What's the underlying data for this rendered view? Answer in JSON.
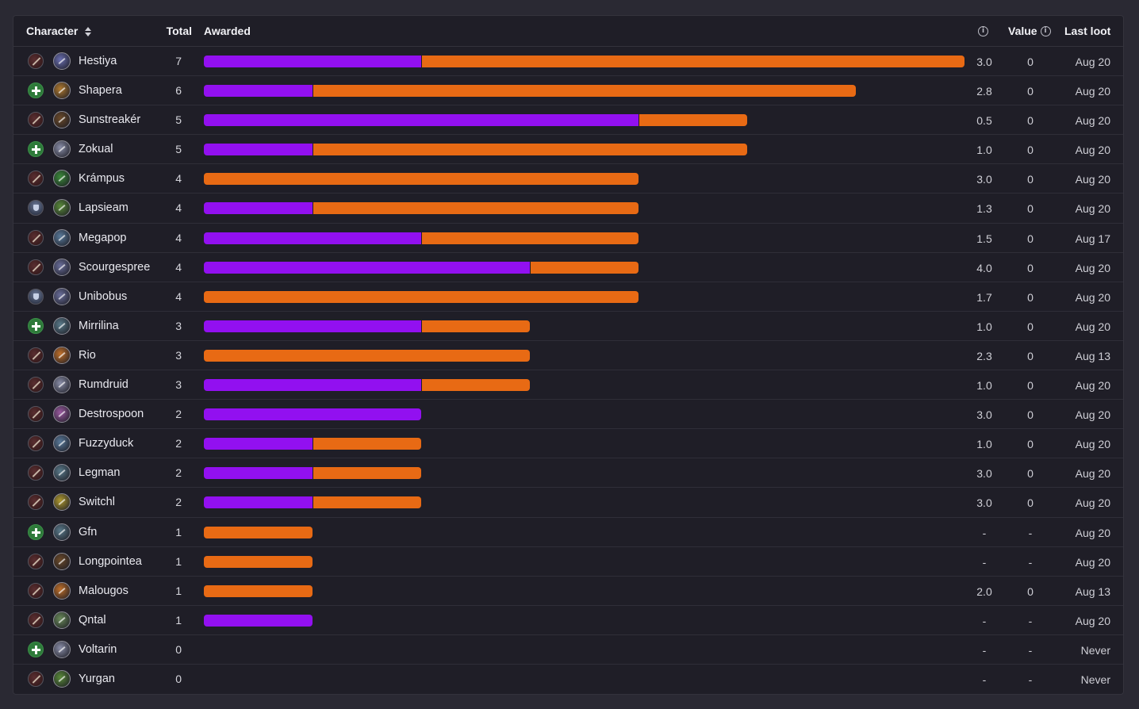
{
  "header": {
    "character": "Character",
    "total": "Total",
    "awarded": "Awarded",
    "value": "Value",
    "last_loot": "Last loot"
  },
  "colors": {
    "purple": "#9210f0",
    "orange": "#e86a14",
    "background": "#1f1e27"
  },
  "unit_per_item_fraction_of_max": 7,
  "rows": [
    {
      "role": "dps",
      "class_color": "#6a6fb0",
      "name": "Hestiya",
      "total": "7",
      "purple": 2,
      "orange": 5,
      "score": "3.0",
      "value": "0",
      "last": "Aug 20"
    },
    {
      "role": "heal",
      "class_color": "#b07a30",
      "name": "Shapera",
      "total": "6",
      "purple": 1,
      "orange": 5,
      "score": "2.8",
      "value": "0",
      "last": "Aug 20"
    },
    {
      "role": "dps",
      "class_color": "#6b4a2a",
      "name": "Sunstreakér",
      "total": "5",
      "purple": 4,
      "orange": 1,
      "score": "0.5",
      "value": "0",
      "last": "Aug 20"
    },
    {
      "role": "heal",
      "class_color": "#8a8ea8",
      "name": "Zokual",
      "total": "5",
      "purple": 1,
      "orange": 4,
      "score": "1.0",
      "value": "0",
      "last": "Aug 20"
    },
    {
      "role": "dps",
      "class_color": "#3b8a3a",
      "name": "Krámpus",
      "total": "4",
      "purple": 0,
      "orange": 4,
      "score": "3.0",
      "value": "0",
      "last": "Aug 20"
    },
    {
      "role": "tank",
      "class_color": "#5a8a3a",
      "name": "Lapsieam",
      "total": "4",
      "purple": 1,
      "orange": 3,
      "score": "1.3",
      "value": "0",
      "last": "Aug 20"
    },
    {
      "role": "dps",
      "class_color": "#5a7a9a",
      "name": "Megapop",
      "total": "4",
      "purple": 2,
      "orange": 2,
      "score": "1.5",
      "value": "0",
      "last": "Aug 17"
    },
    {
      "role": "dps",
      "class_color": "#6a6e9a",
      "name": "Scourgespree",
      "total": "4",
      "purple": 3,
      "orange": 1,
      "score": "4.0",
      "value": "0",
      "last": "Aug 20"
    },
    {
      "role": "tank",
      "class_color": "#6a6e9a",
      "name": "Unibobus",
      "total": "4",
      "purple": 0,
      "orange": 4,
      "score": "1.7",
      "value": "0",
      "last": "Aug 20"
    },
    {
      "role": "heal",
      "class_color": "#5a7a8a",
      "name": "Mirrilina",
      "total": "3",
      "purple": 2,
      "orange": 1,
      "score": "1.0",
      "value": "0",
      "last": "Aug 20"
    },
    {
      "role": "dps",
      "class_color": "#c0702a",
      "name": "Rio",
      "total": "3",
      "purple": 0,
      "orange": 3,
      "score": "2.3",
      "value": "0",
      "last": "Aug 13"
    },
    {
      "role": "dps",
      "class_color": "#8a8ea8",
      "name": "Rumdruid",
      "total": "3",
      "purple": 2,
      "orange": 1,
      "score": "1.0",
      "value": "0",
      "last": "Aug 20"
    },
    {
      "role": "dps",
      "class_color": "#9a5aa0",
      "name": "Destrospoon",
      "total": "2",
      "purple": 2,
      "orange": 0,
      "score": "3.0",
      "value": "0",
      "last": "Aug 20"
    },
    {
      "role": "dps",
      "class_color": "#5a7a9a",
      "name": "Fuzzyduck",
      "total": "2",
      "purple": 1,
      "orange": 1,
      "score": "1.0",
      "value": "0",
      "last": "Aug 20"
    },
    {
      "role": "dps",
      "class_color": "#5a7a8a",
      "name": "Legman",
      "total": "2",
      "purple": 1,
      "orange": 1,
      "score": "3.0",
      "value": "0",
      "last": "Aug 20"
    },
    {
      "role": "dps",
      "class_color": "#b09a30",
      "name": "Switchl",
      "total": "2",
      "purple": 1,
      "orange": 1,
      "score": "3.0",
      "value": "0",
      "last": "Aug 20"
    },
    {
      "role": "heal",
      "class_color": "#5a7a8a",
      "name": "Gfn",
      "total": "1",
      "purple": 0,
      "orange": 1,
      "score": "-",
      "value": "-",
      "last": "Aug 20"
    },
    {
      "role": "dps",
      "class_color": "#6b4a2a",
      "name": "Longpointea",
      "total": "1",
      "purple": 0,
      "orange": 1,
      "score": "-",
      "value": "-",
      "last": "Aug 20"
    },
    {
      "role": "dps",
      "class_color": "#c0702a",
      "name": "Malougos",
      "total": "1",
      "purple": 0,
      "orange": 1,
      "score": "2.0",
      "value": "0",
      "last": "Aug 13"
    },
    {
      "role": "dps",
      "class_color": "#6a8a5a",
      "name": "Qntal",
      "total": "1",
      "purple": 1,
      "orange": 0,
      "score": "-",
      "value": "-",
      "last": "Aug 20"
    },
    {
      "role": "heal",
      "class_color": "#8a8ea8",
      "name": "Voltarin",
      "total": "0",
      "purple": 0,
      "orange": 0,
      "score": "-",
      "value": "-",
      "last": "Never"
    },
    {
      "role": "dps",
      "class_color": "#5a8a3a",
      "name": "Yurgan",
      "total": "0",
      "purple": 0,
      "orange": 0,
      "score": "-",
      "value": "-",
      "last": "Never"
    }
  ]
}
